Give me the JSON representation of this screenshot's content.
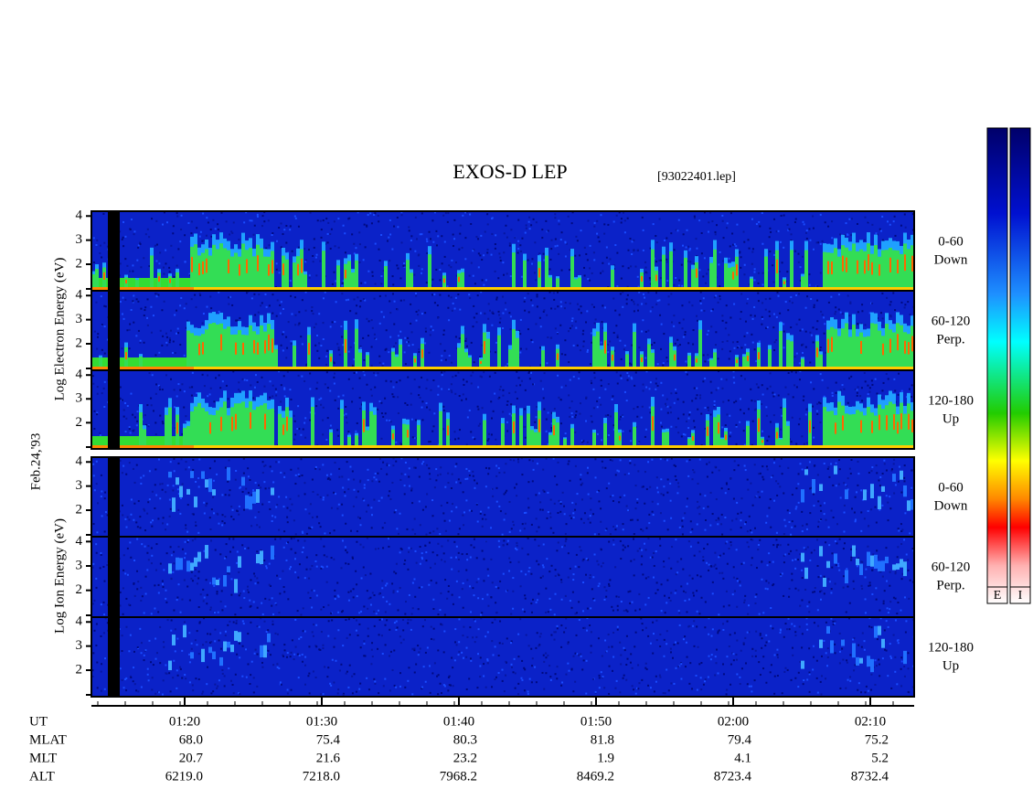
{
  "header": {
    "title": "EXOS-D LEP",
    "file": "[93022401.lep]"
  },
  "date": "Feb.24,'93",
  "electron": {
    "axis_label": "Log Electron Energy (eV)",
    "panels": [
      {
        "angle": "0-60",
        "direction": "Down"
      },
      {
        "angle": "60-120",
        "direction": "Perp."
      },
      {
        "angle": "120-180",
        "direction": "Up"
      }
    ]
  },
  "ion": {
    "axis_label": "Log Ion Energy (eV)",
    "panels": [
      {
        "angle": "0-60",
        "direction": "Down"
      },
      {
        "angle": "60-120",
        "direction": "Perp."
      },
      {
        "angle": "120-180",
        "direction": "Up"
      }
    ]
  },
  "energy_axis": {
    "ylim": [
      0.9,
      4.2
    ],
    "yticks": [
      2,
      3,
      4
    ]
  },
  "time_axis": {
    "label": "UT",
    "xlim": [
      73.2,
      133.2
    ],
    "xticks": [
      {
        "value": 80,
        "label": "01:20"
      },
      {
        "value": 90,
        "label": "01:30"
      },
      {
        "value": 100,
        "label": "01:40"
      },
      {
        "value": 110,
        "label": "01:50"
      },
      {
        "value": 120,
        "label": "02:00"
      },
      {
        "value": 130,
        "label": "02:10"
      }
    ]
  },
  "orbit_table": {
    "rows": [
      {
        "label": "MLAT",
        "values": [
          "68.0",
          "75.4",
          "80.3",
          "81.8",
          "79.4",
          "75.2"
        ]
      },
      {
        "label": "MLT",
        "values": [
          "20.7",
          "21.6",
          "23.2",
          "1.9",
          "4.1",
          "5.2"
        ]
      },
      {
        "label": "ALT",
        "values": [
          "6219.0",
          "7218.0",
          "7968.2",
          "8469.2",
          "8723.4",
          "8732.4"
        ]
      }
    ]
  },
  "colorbars": [
    "E",
    "I"
  ]
}
